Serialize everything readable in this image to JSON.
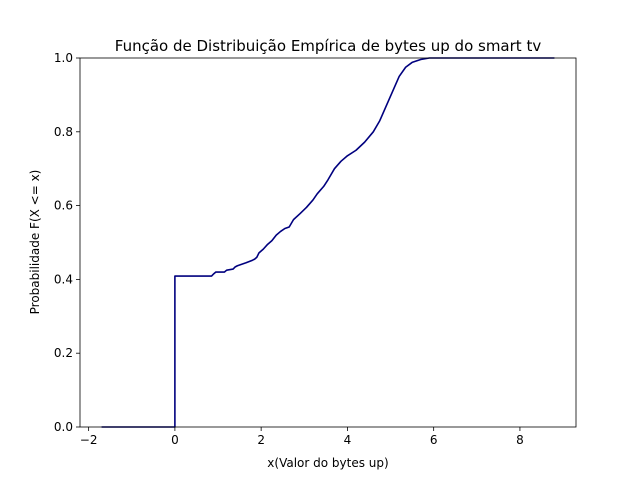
{
  "chart_data": {
    "type": "line",
    "title": "Função de Distribuição Empírica de bytes up do smart tv",
    "xlabel": "x(Valor do bytes up)",
    "ylabel": "Probabilidade F(X <= x)",
    "xlim": [
      -2.2,
      9.3
    ],
    "ylim": [
      0.0,
      1.0
    ],
    "x_ticks": [
      {
        "value": -2,
        "label": "−2"
      },
      {
        "value": 0,
        "label": "0"
      },
      {
        "value": 2,
        "label": "2"
      },
      {
        "value": 4,
        "label": "4"
      },
      {
        "value": 6,
        "label": "6"
      },
      {
        "value": 8,
        "label": "8"
      }
    ],
    "y_ticks": [
      {
        "value": 0.0,
        "label": "0.0"
      },
      {
        "value": 0.2,
        "label": "0.2"
      },
      {
        "value": 0.4,
        "label": "0.4"
      },
      {
        "value": 0.6,
        "label": "0.6"
      },
      {
        "value": 0.8,
        "label": "0.8"
      },
      {
        "value": 1.0,
        "label": "1.0"
      }
    ],
    "grid": false,
    "series": [
      {
        "color": "#00007f",
        "points": [
          [
            -1.7,
            0.0
          ],
          [
            0.0,
            0.0
          ],
          [
            0.0,
            0.409
          ],
          [
            0.85,
            0.409
          ],
          [
            0.9,
            0.415
          ],
          [
            0.95,
            0.42
          ],
          [
            1.15,
            0.42
          ],
          [
            1.2,
            0.425
          ],
          [
            1.35,
            0.428
          ],
          [
            1.4,
            0.434
          ],
          [
            1.45,
            0.437
          ],
          [
            1.65,
            0.445
          ],
          [
            1.8,
            0.452
          ],
          [
            1.85,
            0.455
          ],
          [
            1.9,
            0.46
          ],
          [
            1.95,
            0.472
          ],
          [
            2.05,
            0.482
          ],
          [
            2.15,
            0.495
          ],
          [
            2.25,
            0.505
          ],
          [
            2.35,
            0.52
          ],
          [
            2.45,
            0.53
          ],
          [
            2.55,
            0.538
          ],
          [
            2.65,
            0.542
          ],
          [
            2.75,
            0.562
          ],
          [
            2.9,
            0.578
          ],
          [
            3.05,
            0.595
          ],
          [
            3.2,
            0.615
          ],
          [
            3.3,
            0.632
          ],
          [
            3.45,
            0.652
          ],
          [
            3.55,
            0.67
          ],
          [
            3.7,
            0.7
          ],
          [
            3.85,
            0.72
          ],
          [
            4.0,
            0.735
          ],
          [
            4.2,
            0.75
          ],
          [
            4.4,
            0.772
          ],
          [
            4.6,
            0.8
          ],
          [
            4.75,
            0.83
          ],
          [
            4.9,
            0.87
          ],
          [
            5.05,
            0.91
          ],
          [
            5.2,
            0.95
          ],
          [
            5.35,
            0.975
          ],
          [
            5.5,
            0.988
          ],
          [
            5.7,
            0.996
          ],
          [
            5.9,
            1.0
          ],
          [
            8.8,
            1.0
          ]
        ]
      }
    ]
  }
}
